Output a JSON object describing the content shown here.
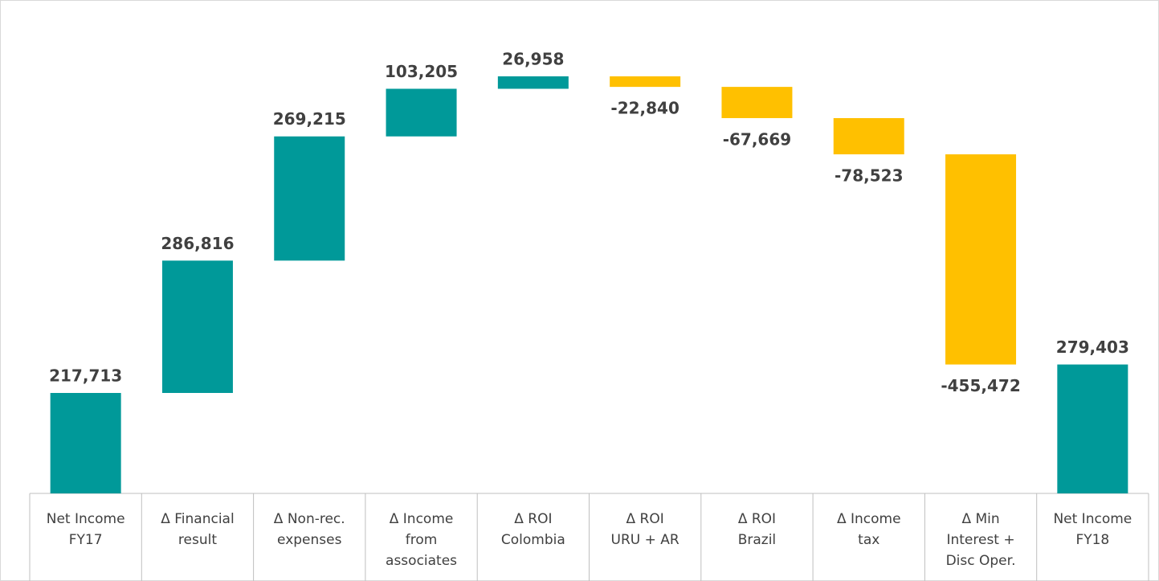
{
  "chart_data": {
    "type": "waterfall",
    "categories": [
      "Net Income\nFY17",
      "Δ Financial\nresult",
      "Δ Non-rec.\nexpenses",
      "Δ Income\nfrom\nassociates",
      "Δ ROI\nColombia",
      "Δ ROI\nURU + AR",
      "Δ ROI\nBrazil",
      "Δ Income\ntax",
      "Δ Min\nInterest +\nDisc Oper.",
      "Net Income\nFY18"
    ],
    "values": [
      217713,
      286816,
      269215,
      103205,
      26958,
      -22840,
      -67669,
      -78523,
      -455472,
      279403
    ],
    "value_labels": [
      "217,713",
      "286,816",
      "269,215",
      "103,205",
      "26,958",
      "-22,840",
      "-67,669",
      "-78,523",
      "-455,472",
      "279,403"
    ],
    "last_is_total": true,
    "increase_color": "#009999",
    "decrease_color": "#ffc000"
  }
}
